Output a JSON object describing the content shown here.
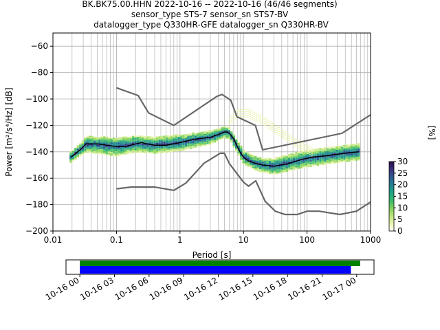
{
  "title_lines": [
    "BK.BK75.00.HHN   2022-10-16 -- 2022-10-16  (46/46 segments)",
    "sensor_type STS-7 sensor_sn STS7-BV",
    "datalogger_type Q330HR-GFE datalogger_sn Q330HR-BV"
  ],
  "chart_data": {
    "type": "heatmap",
    "xlabel": "Period [s]",
    "ylabel": "Power [m²/s⁴/Hz] [dB]",
    "xscale": "log",
    "xlim": [
      0.01,
      1000
    ],
    "ylim": [
      -200,
      -50
    ],
    "x_ticks": [
      "0.01",
      "0.1",
      "1",
      "10",
      "100",
      "1000"
    ],
    "y_ticks": [
      "−60",
      "−80",
      "−100",
      "−120",
      "−140",
      "−160",
      "−180",
      "−200"
    ],
    "grid": true,
    "colorbar": {
      "label": "[%]",
      "range": [
        0,
        30
      ],
      "ticks": [
        "0",
        "5",
        "10",
        "15",
        "20",
        "25",
        "30"
      ],
      "colormap": "pqlx"
    },
    "mode_line": {
      "name": "mode",
      "color": "#000000",
      "points": [
        [
          0.019,
          -144
        ],
        [
          0.022,
          -142
        ],
        [
          0.026,
          -139
        ],
        [
          0.029,
          -137
        ],
        [
          0.033,
          -134
        ],
        [
          0.05,
          -134
        ],
        [
          0.07,
          -135
        ],
        [
          0.1,
          -136
        ],
        [
          0.14,
          -136
        ],
        [
          0.2,
          -134
        ],
        [
          0.25,
          -133
        ],
        [
          0.3,
          -134
        ],
        [
          0.4,
          -135
        ],
        [
          0.6,
          -135
        ],
        [
          0.8,
          -134
        ],
        [
          1.0,
          -133
        ],
        [
          1.5,
          -131
        ],
        [
          2.0,
          -130
        ],
        [
          3.0,
          -129
        ],
        [
          4.0,
          -127
        ],
        [
          5.0,
          -125
        ],
        [
          5.5,
          -125
        ],
        [
          6.0,
          -126
        ],
        [
          7.0,
          -130
        ],
        [
          8.0,
          -136
        ],
        [
          9.0,
          -141
        ],
        [
          10,
          -144
        ],
        [
          12,
          -147
        ],
        [
          16,
          -149
        ],
        [
          20,
          -150
        ],
        [
          30,
          -151
        ],
        [
          50,
          -149
        ],
        [
          80,
          -146
        ],
        [
          120,
          -144
        ],
        [
          200,
          -143
        ],
        [
          400,
          -141
        ],
        [
          650,
          -140
        ]
      ]
    },
    "model_high": {
      "name": "NHNM",
      "color": "#666666",
      "points": [
        [
          0.1,
          -91.5
        ],
        [
          0.22,
          -97.4
        ],
        [
          0.32,
          -110.5
        ],
        [
          0.8,
          -120
        ],
        [
          3.8,
          -98
        ],
        [
          4.6,
          -96.5
        ],
        [
          6.3,
          -101
        ],
        [
          7.9,
          -113.5
        ],
        [
          15.4,
          -120
        ],
        [
          20,
          -138.5
        ],
        [
          354.8,
          -126
        ],
        [
          1000,
          -112
        ]
      ]
    },
    "model_low": {
      "name": "NLNM",
      "color": "#666666",
      "points": [
        [
          0.1,
          -168
        ],
        [
          0.17,
          -166.7
        ],
        [
          0.4,
          -166.7
        ],
        [
          0.8,
          -169.2
        ],
        [
          1.24,
          -163.7
        ],
        [
          2.4,
          -148.6
        ],
        [
          4.3,
          -141.1
        ],
        [
          5.0,
          -141.1
        ],
        [
          6.0,
          -149
        ],
        [
          10,
          -163
        ],
        [
          12,
          -166
        ],
        [
          15.6,
          -162
        ],
        [
          21.9,
          -177.5
        ],
        [
          31.6,
          -185
        ],
        [
          45,
          -187.5
        ],
        [
          70,
          -187.5
        ],
        [
          100,
          -185
        ],
        [
          154.5,
          -185
        ],
        [
          328.9,
          -187.5
        ],
        [
          600,
          -185
        ],
        [
          1000,
          -178
        ]
      ]
    },
    "density": {
      "name": "probability density",
      "center": [
        [
          0.019,
          -144
        ],
        [
          0.029,
          -137
        ],
        [
          0.033,
          -134
        ],
        [
          0.1,
          -136
        ],
        [
          0.2,
          -134
        ],
        [
          0.4,
          -135
        ],
        [
          1,
          -133
        ],
        [
          3,
          -129
        ],
        [
          5,
          -125
        ],
        [
          6,
          -126
        ],
        [
          8,
          -136
        ],
        [
          10,
          -144
        ],
        [
          16,
          -149
        ],
        [
          30,
          -151
        ],
        [
          80,
          -146
        ],
        [
          200,
          -143
        ],
        [
          650,
          -140
        ]
      ],
      "half_width_db": [
        4,
        5,
        6,
        7,
        6,
        6,
        6,
        5,
        4,
        4,
        5,
        5,
        5,
        6,
        6,
        6,
        6
      ],
      "faint_bump": [
        [
          6,
          -118
        ],
        [
          8,
          -111
        ],
        [
          12,
          -111
        ],
        [
          20,
          -116
        ],
        [
          40,
          -126
        ],
        [
          70,
          -134
        ],
        [
          120,
          -140
        ]
      ]
    },
    "timeline": {
      "ticks": [
        "10-16 00",
        "10-16 03",
        "10-16 06",
        "10-16 09",
        "10-16 12",
        "10-16 15",
        "10-16 18",
        "10-16 21",
        "10-17 00"
      ],
      "green_bar": {
        "start_hours": 0,
        "end_hours": 24.3,
        "color": "#008000"
      },
      "blue_bar": {
        "start_hours": 0,
        "end_hours": 23.5,
        "color": "#0000ff"
      },
      "range_hours": [
        -1.2,
        25.5
      ]
    }
  }
}
